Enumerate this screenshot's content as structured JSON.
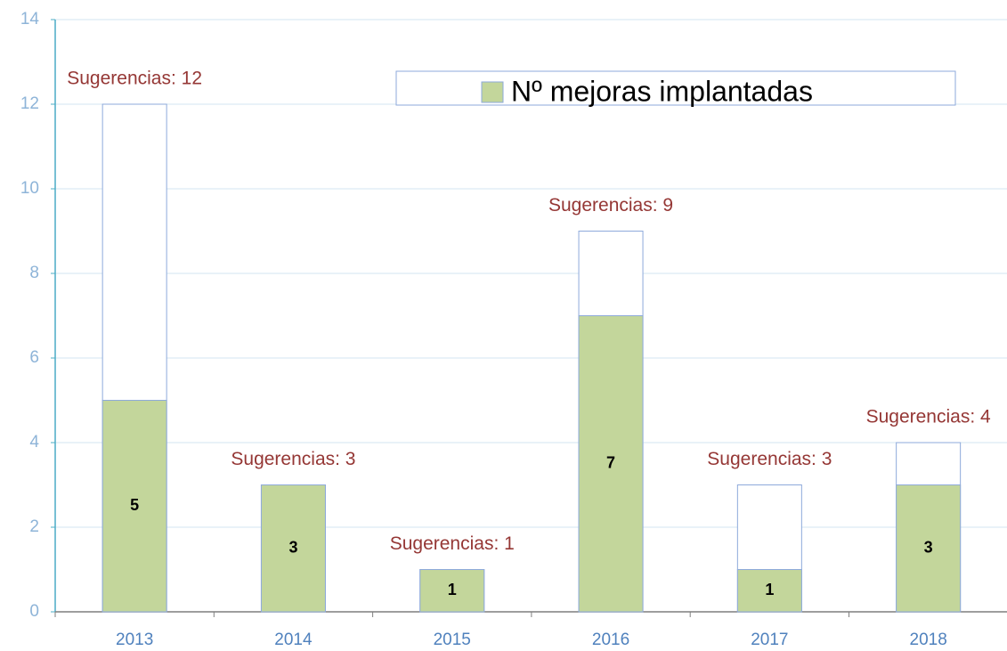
{
  "chart_data": {
    "type": "bar",
    "mode": "overlap",
    "categories": [
      "2013",
      "2014",
      "2015",
      "2016",
      "2017",
      "2018"
    ],
    "series": [
      {
        "color": "#ffffff",
        "values": [
          12,
          3,
          1,
          9,
          3,
          4
        ],
        "value_labels": [
          "Sugerencias: 12",
          "Sugerencias: 3",
          "Sugerencias: 1",
          "Sugerencias: 9",
          "Sugerencias: 3",
          "Sugerencias: 4"
        ]
      },
      {
        "name": "Nº mejoras implantadas",
        "color": "#c3d69b",
        "values": [
          5,
          3,
          1,
          7,
          1,
          3
        ]
      }
    ],
    "ylim": [
      0,
      14
    ],
    "yticks": [
      0,
      2,
      4,
      6,
      8,
      10,
      12,
      14
    ],
    "grid": true
  }
}
